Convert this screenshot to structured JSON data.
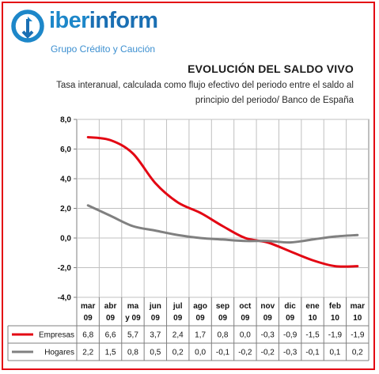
{
  "brand": {
    "name_part1": "iber",
    "name_part2": "inform",
    "subtitle": "Grupo Crédito y Caución"
  },
  "colors": {
    "accent": "#e30613",
    "brand": "#1d87c9",
    "grid": "#c0c0c0"
  },
  "chart_data": {
    "type": "line",
    "title": "EVOLUCIÓN DEL SALDO VIVO",
    "subtitle": "Tasa interanual, calculada como flujo efectivo del periodo entre el saldo al principio del periodo/ Banco de España",
    "categories": [
      [
        "mar",
        "09"
      ],
      [
        "abr",
        "09"
      ],
      [
        "ma",
        "y 09"
      ],
      [
        "jun",
        "09"
      ],
      [
        "jul",
        "09"
      ],
      [
        "ago",
        "09"
      ],
      [
        "sep",
        "09"
      ],
      [
        "oct",
        "09"
      ],
      [
        "nov",
        "09"
      ],
      [
        "dic",
        "09"
      ],
      [
        "ene",
        "10"
      ],
      [
        "feb",
        "10"
      ],
      [
        "mar",
        "10"
      ]
    ],
    "series": [
      {
        "name": "Empresas",
        "color": "#e30613",
        "values": [
          6.8,
          6.6,
          5.7,
          3.7,
          2.4,
          1.7,
          0.8,
          0.0,
          -0.3,
          -0.9,
          -1.5,
          -1.9,
          -1.9
        ],
        "labels": [
          "6,8",
          "6,6",
          "5,7",
          "3,7",
          "2,4",
          "1,7",
          "0,8",
          "0,0",
          "-0,3",
          "-0,9",
          "-1,5",
          "-1,9",
          "-1,9"
        ]
      },
      {
        "name": "Hogares",
        "color": "#808080",
        "values": [
          2.2,
          1.5,
          0.8,
          0.5,
          0.2,
          0.0,
          -0.1,
          -0.2,
          -0.2,
          -0.3,
          -0.1,
          0.1,
          0.2
        ],
        "labels": [
          "2,2",
          "1,5",
          "0,8",
          "0,5",
          "0,2",
          "0,0",
          "-0,1",
          "-0,2",
          "-0,2",
          "-0,3",
          "-0,1",
          "0,1",
          "0,2"
        ]
      }
    ],
    "ylim": [
      -4.0,
      8.0
    ],
    "yticks": [
      8.0,
      6.0,
      4.0,
      2.0,
      0.0,
      -2.0,
      -4.0
    ],
    "ytick_labels": [
      "8,0",
      "6,0",
      "4,0",
      "2,0",
      "0,0",
      "-2,0",
      "-4,0"
    ],
    "grid": true,
    "legend": "data-table"
  }
}
